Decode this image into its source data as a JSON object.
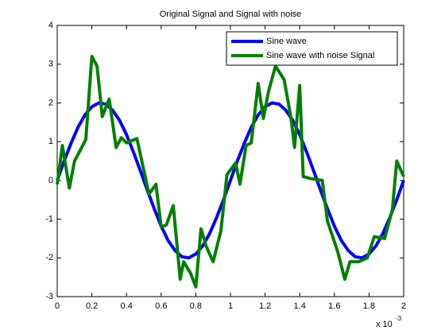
{
  "chart_data": {
    "type": "line",
    "title": "Original Signal and Signal with noise",
    "x_multiplier": {
      "base": "x 10",
      "exponent": "-3"
    },
    "xlim": [
      0,
      2
    ],
    "xticks": [
      0,
      0.2,
      0.4,
      0.6,
      0.8,
      1,
      1.2,
      1.4,
      1.6,
      1.8,
      2
    ],
    "ylim": [
      -3,
      4
    ],
    "yticks": [
      -3,
      -2,
      -1,
      0,
      1,
      2,
      3,
      4
    ],
    "grid": false,
    "legend": "upper right",
    "series": [
      {
        "name": "Sine wave",
        "color": "#0000ff",
        "x": [
          0,
          0.04,
          0.08,
          0.12,
          0.16,
          0.2,
          0.24,
          0.28,
          0.32,
          0.36,
          0.4,
          0.44,
          0.48,
          0.52,
          0.56,
          0.6,
          0.64,
          0.68,
          0.72,
          0.76,
          0.8,
          0.84,
          0.88,
          0.92,
          0.96,
          1,
          1.04,
          1.08,
          1.12,
          1.16,
          1.2,
          1.24,
          1.28,
          1.32,
          1.36,
          1.4,
          1.44,
          1.48,
          1.52,
          1.56,
          1.6,
          1.64,
          1.68,
          1.72,
          1.76,
          1.8,
          1.84,
          1.88,
          1.92,
          1.96,
          2
        ],
        "values": [
          0,
          0.5,
          0.96,
          1.37,
          1.69,
          1.9,
          2,
          1.97,
          1.81,
          1.55,
          1.18,
          0.73,
          0.25,
          -0.25,
          -0.73,
          -1.18,
          -1.55,
          -1.81,
          -1.97,
          -2,
          -1.9,
          -1.69,
          -1.37,
          -0.96,
          -0.5,
          0,
          0.5,
          0.96,
          1.37,
          1.69,
          1.9,
          2,
          1.97,
          1.81,
          1.55,
          1.18,
          0.73,
          0.25,
          -0.25,
          -0.73,
          -1.18,
          -1.55,
          -1.81,
          -1.97,
          -2,
          -1.9,
          -1.69,
          -1.37,
          -0.96,
          -0.5,
          0
        ]
      },
      {
        "name": "Sine wave with noise Signal",
        "color": "#008000",
        "x": [
          0,
          0.03,
          0.07,
          0.1,
          0.165,
          0.2,
          0.23,
          0.26,
          0.3,
          0.34,
          0.37,
          0.4,
          0.46,
          0.53,
          0.57,
          0.6,
          0.63,
          0.67,
          0.71,
          0.73,
          0.77,
          0.8,
          0.83,
          0.86,
          0.9,
          0.945,
          0.98,
          1.03,
          1.055,
          1.09,
          1.12,
          1.16,
          1.19,
          1.22,
          1.26,
          1.31,
          1.35,
          1.37,
          1.4,
          1.42,
          1.46,
          1.53,
          1.56,
          1.62,
          1.66,
          1.69,
          1.74,
          1.79,
          1.83,
          1.89,
          1.935,
          1.96,
          2
        ],
        "values": [
          -0.1,
          0.9,
          -0.2,
          0.5,
          1.05,
          3.2,
          2.95,
          1.65,
          2.1,
          0.85,
          1.1,
          0.97,
          1.08,
          -0.35,
          -0.1,
          -1.2,
          -1.15,
          -0.65,
          -2.55,
          -2.1,
          -2.4,
          -2.75,
          -1.25,
          -1.7,
          -2.1,
          -1.3,
          0.15,
          0.45,
          -0.1,
          0.9,
          0.97,
          2.5,
          1.6,
          2.3,
          2.95,
          2.6,
          1.6,
          0.85,
          2.45,
          0.1,
          0.05,
          0,
          -1.05,
          -1.85,
          -2.55,
          -2.1,
          -2.1,
          -2,
          -1.45,
          -1.5,
          -0.75,
          0.5,
          0.1
        ]
      }
    ]
  }
}
